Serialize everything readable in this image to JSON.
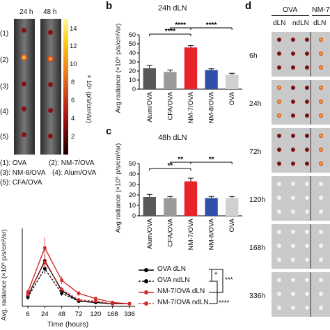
{
  "panel_a": {
    "time_labels": [
      "24 h",
      "48 h"
    ],
    "row_labels": [
      "(1)",
      "(2)",
      "(3)",
      "(4)",
      "(5)"
    ],
    "colorbar_ticks": [
      "14",
      "12",
      "10",
      "8",
      "6",
      "4",
      "2"
    ],
    "colorbar_unit": "× 10⁶ (p/s/cm²/sr)",
    "legend_lines": [
      [
        "(1): OVA",
        "(2): NM-7/OVA"
      ],
      [
        "(3): NM-8/OVA",
        "(4): Alum/OVA"
      ],
      [
        "(5): CFA/OVA",
        ""
      ]
    ]
  },
  "panel_b": {
    "letter": "b",
    "title": "24h dLN",
    "ylabel": "Avg radiance (×10⁵ p/s/cm²/sr)",
    "sig": [
      "****",
      "****",
      "****"
    ]
  },
  "panel_c": {
    "letter": "c",
    "title": "48h dLN",
    "ylabel": "Avg radiance (×10⁵ p/s/cm²/sr)",
    "sig": [
      "**",
      "**",
      "**"
    ]
  },
  "panel_d": {
    "letter": "d",
    "group_labels": [
      "OVA",
      "NM-7"
    ],
    "sub_labels": [
      "dLN",
      "ndLN",
      "dLN"
    ],
    "time_labels": [
      "6h",
      "24h",
      "72h",
      "120h",
      "168h",
      "336h"
    ]
  },
  "panel_time": {
    "ylabel_partial": "Avg. radiance (×10⁵ p/s/cm²/sr)",
    "xlabel": "Time (hours)",
    "legend": [
      "OVA dLN",
      "OVA ndLN",
      "NM-7/OVA dLN",
      "NM-7/OVA ndLN"
    ],
    "sig": [
      "*",
      "***",
      "****"
    ]
  },
  "colors": {
    "alum": "#595959",
    "cfa": "#9a9a9a",
    "nm7": "#e8232a",
    "nm8": "#2f4fa8",
    "ova": "#d0d0d0",
    "red_line": "#d42a2a"
  },
  "chart_data": [
    {
      "type": "bar",
      "title": "24h dLN",
      "ylabel": "Avg radiance (×10⁵ p/s/cm²/sr)",
      "categories": [
        "Alum/OVA",
        "CFA/OVA",
        "NM-7/OVA",
        "NM-8/OVA",
        "OVA"
      ],
      "values": [
        23,
        19,
        46,
        21,
        16
      ],
      "errors": [
        3,
        2,
        2,
        1.5,
        1.5
      ],
      "ylim": [
        0,
        60
      ],
      "yticks": [
        0,
        10,
        20,
        30,
        40,
        50,
        60
      ]
    },
    {
      "type": "bar",
      "title": "48h dLN",
      "ylabel": "Avg radiance (×10⁵ p/s/cm²/sr)",
      "categories": [
        "Alum/OVA",
        "CFA/OVA",
        "NM-7/OVA",
        "NM-8/OVA",
        "OVA"
      ],
      "values": [
        18,
        17,
        33,
        17,
        17
      ],
      "errors": [
        2.5,
        1.5,
        3,
        1.5,
        1.5
      ],
      "ylim": [
        0,
        50
      ],
      "yticks": [
        0,
        10,
        20,
        30,
        40,
        50
      ]
    },
    {
      "type": "line",
      "xlabel": "Time (hours)",
      "x": [
        6,
        24,
        48,
        72,
        120,
        168,
        336
      ],
      "xtick_labels": [
        "6",
        "24",
        "48",
        "72",
        "120",
        "168",
        "336"
      ],
      "ylim": [
        0,
        60
      ],
      "yticks": [
        0,
        20,
        40,
        60
      ],
      "series": [
        {
          "name": "OVA dLN",
          "values": [
            8,
            35,
            12,
            4,
            3,
            2,
            2
          ],
          "errors": [
            2,
            5,
            2,
            1,
            1,
            1,
            1
          ]
        },
        {
          "name": "OVA ndLN",
          "values": [
            7,
            29,
            10,
            4,
            3,
            2,
            2
          ],
          "errors": [
            2,
            4,
            2,
            1,
            1,
            1,
            1
          ]
        },
        {
          "name": "NM-7/OVA dLN",
          "values": [
            11,
            45,
            20,
            10,
            6,
            3,
            2
          ],
          "errors": [
            2,
            8,
            3,
            2,
            1,
            1,
            1
          ]
        },
        {
          "name": "NM-7/OVA ndLN",
          "values": [
            9,
            34,
            13,
            5,
            4,
            2,
            2
          ],
          "errors": [
            2,
            5,
            2,
            1,
            1,
            1,
            1
          ]
        }
      ]
    }
  ]
}
